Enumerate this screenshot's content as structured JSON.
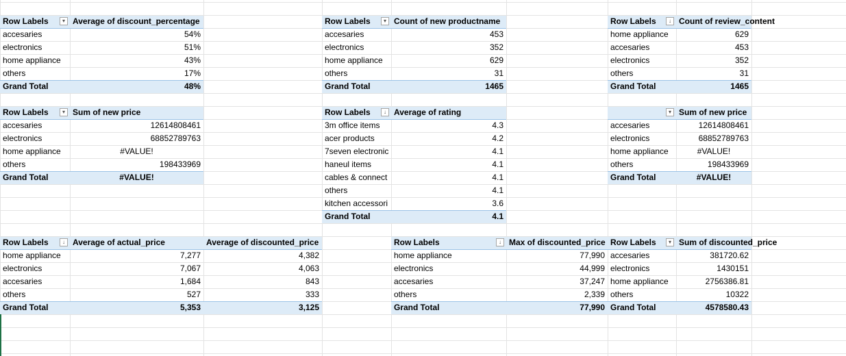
{
  "sheet": {
    "pivots": [
      {
        "id": "p1",
        "headers": [
          "Row Labels",
          "Average of discount_percentage"
        ],
        "filter_icon": "filter-dropdown-icon",
        "rows": [
          [
            "accesaries",
            "54%"
          ],
          [
            "electronics",
            "51%"
          ],
          [
            "home appliance",
            "43%"
          ],
          [
            "others",
            "17%"
          ]
        ],
        "total": [
          "Grand Total",
          "48%"
        ]
      },
      {
        "id": "p2",
        "headers": [
          "Row Labels",
          "Count of new productname"
        ],
        "filter_icon": "filter-dropdown-icon",
        "rows": [
          [
            "accesaries",
            "453"
          ],
          [
            "electronics",
            "352"
          ],
          [
            "home appliance",
            "629"
          ],
          [
            "others",
            "31"
          ]
        ],
        "total": [
          "Grand Total",
          "1465"
        ]
      },
      {
        "id": "p3",
        "headers": [
          "Row Labels",
          "Count of review_content"
        ],
        "filter_icon": "sort-descending-filter-icon",
        "rows": [
          [
            "home appliance",
            "629"
          ],
          [
            "accesaries",
            "453"
          ],
          [
            "electronics",
            "352"
          ],
          [
            "others",
            "31"
          ]
        ],
        "total": [
          "Grand Total",
          "1465"
        ]
      },
      {
        "id": "p4",
        "headers": [
          "Row Labels",
          "Sum of new price"
        ],
        "filter_icon": "filter-dropdown-icon",
        "rows": [
          [
            "accesaries",
            "12614808461"
          ],
          [
            "electronics",
            "68852789763"
          ],
          [
            "home appliance",
            "#VALUE!"
          ],
          [
            "others",
            "198433969"
          ]
        ],
        "total": [
          "Grand Total",
          "#VALUE!"
        ]
      },
      {
        "id": "p5",
        "headers": [
          "Row Labels",
          "Average of rating"
        ],
        "filter_icon": "sort-descending-filter-icon",
        "rows": [
          [
            "3m office items",
            "4.3"
          ],
          [
            "acer products",
            "4.2"
          ],
          [
            "7seven electronic",
            "4.1"
          ],
          [
            "haneul items",
            "4.1"
          ],
          [
            "cables & connect",
            "4.1"
          ],
          [
            "others",
            "4.1"
          ],
          [
            "kitchen accessori",
            "3.6"
          ]
        ],
        "total": [
          "Grand Total",
          "4.1"
        ]
      },
      {
        "id": "p6",
        "headers": [
          "",
          "Sum of new price"
        ],
        "filter_icon": "filter-dropdown-icon",
        "rows": [
          [
            "accesaries",
            "12614808461"
          ],
          [
            "electronics",
            "68852789763"
          ],
          [
            "home appliance",
            "#VALUE!"
          ],
          [
            "others",
            "198433969"
          ]
        ],
        "total": [
          "Grand Total",
          "#VALUE!"
        ]
      },
      {
        "id": "p7",
        "headers": [
          "Row Labels",
          "Average of actual_price",
          "Average of discounted_price"
        ],
        "filter_icon": "sort-descending-filter-icon",
        "rows": [
          [
            "home appliance",
            "7,277",
            "4,382"
          ],
          [
            "electronics",
            "7,067",
            "4,063"
          ],
          [
            "accesaries",
            "1,684",
            "843"
          ],
          [
            "others",
            "527",
            "333"
          ]
        ],
        "total": [
          "Grand Total",
          "5,353",
          "3,125"
        ]
      },
      {
        "id": "p8",
        "headers": [
          "Row Labels",
          "Max of discounted_price"
        ],
        "filter_icon": "sort-descending-filter-icon",
        "rows": [
          [
            "home appliance",
            "77,990"
          ],
          [
            "electronics",
            "44,999"
          ],
          [
            "accesaries",
            "37,247"
          ],
          [
            "others",
            "2,339"
          ]
        ],
        "total": [
          "Grand Total",
          "77,990"
        ]
      },
      {
        "id": "p9",
        "headers": [
          "Row Labels",
          "Sum of discounted_price"
        ],
        "filter_icon": "filter-dropdown-icon",
        "rows": [
          [
            "accesaries",
            "381720.62"
          ],
          [
            "electronics",
            "1430151"
          ],
          [
            "home appliance",
            "2756386.81"
          ],
          [
            "others",
            "10322"
          ]
        ],
        "total": [
          "Grand Total",
          "4578580.43"
        ]
      }
    ],
    "colors": {
      "header_fill": "#ddebf7",
      "header_border": "#9bc2e6",
      "gridline": "#e3e3e3"
    }
  }
}
